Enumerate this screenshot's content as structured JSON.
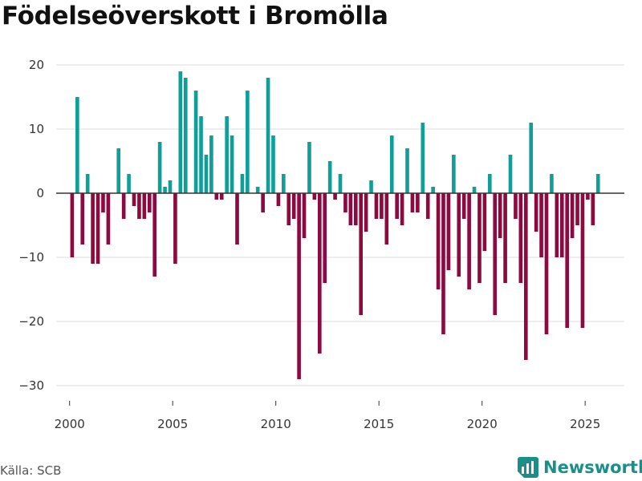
{
  "chart_data": {
    "type": "bar",
    "title": "Födelseöverskott i Bromölla",
    "xlabel": "",
    "ylabel": "",
    "ylim": [
      -32,
      22
    ],
    "xlim": [
      1999.35,
      2026.9
    ],
    "yticks": [
      -30,
      -20,
      -10,
      0,
      10,
      20
    ],
    "xticks": [
      2000,
      2005,
      2010,
      2015,
      2020,
      2025
    ],
    "positive_color": "#0f9e98",
    "negative_color": "#8c0a3f",
    "series": [
      {
        "name": "Födelseöverskott",
        "x": [
          2000.125,
          2000.375,
          2000.625,
          2000.875,
          2001.125,
          2001.375,
          2001.625,
          2001.875,
          2002.125,
          2002.375,
          2002.625,
          2002.875,
          2003.125,
          2003.375,
          2003.625,
          2003.875,
          2004.125,
          2004.375,
          2004.625,
          2004.875,
          2005.125,
          2005.375,
          2005.625,
          2005.875,
          2006.125,
          2006.375,
          2006.625,
          2006.875,
          2007.125,
          2007.375,
          2007.625,
          2007.875,
          2008.125,
          2008.375,
          2008.625,
          2008.875,
          2009.125,
          2009.375,
          2009.625,
          2009.875,
          2010.125,
          2010.375,
          2010.625,
          2010.875,
          2011.125,
          2011.375,
          2011.625,
          2011.875,
          2012.125,
          2012.375,
          2012.625,
          2012.875,
          2013.125,
          2013.375,
          2013.625,
          2013.875,
          2014.125,
          2014.375,
          2014.625,
          2014.875,
          2015.125,
          2015.375,
          2015.625,
          2015.875,
          2016.125,
          2016.375,
          2016.625,
          2016.875,
          2017.125,
          2017.375,
          2017.625,
          2017.875,
          2018.125,
          2018.375,
          2018.625,
          2018.875,
          2019.125,
          2019.375,
          2019.625,
          2019.875,
          2020.125,
          2020.375,
          2020.625,
          2020.875,
          2021.125,
          2021.375,
          2021.625,
          2021.875,
          2022.125,
          2022.375,
          2022.625,
          2022.875,
          2023.125,
          2023.375,
          2023.625,
          2023.875,
          2024.125,
          2024.375,
          2024.625,
          2024.875,
          2025.125,
          2025.375,
          2025.625
        ],
        "values": [
          -10,
          15,
          -8,
          3,
          -11,
          -11,
          -3,
          -8,
          0,
          7,
          -4,
          3,
          -2,
          -4,
          -4,
          -3,
          -13,
          8,
          1,
          2,
          -11,
          19,
          18,
          0,
          16,
          12,
          6,
          9,
          -1,
          -1,
          12,
          9,
          -8,
          3,
          16,
          0,
          1,
          -3,
          18,
          9,
          -2,
          3,
          -5,
          -4,
          -29,
          -7,
          8,
          -1,
          -25,
          -14,
          5,
          -1,
          3,
          -3,
          -5,
          -5,
          -19,
          -6,
          2,
          -4,
          -4,
          -8,
          9,
          -4,
          -5,
          7,
          -3,
          -3,
          11,
          -4,
          1,
          -15,
          -22,
          -12,
          6,
          -13,
          -4,
          -15,
          1,
          -14,
          -9,
          3,
          -19,
          -7,
          -14,
          6,
          -4,
          -14,
          -26,
          11,
          -6,
          -10,
          -22,
          3,
          -10,
          -10,
          -21,
          -7,
          -5,
          -21,
          -1,
          -5,
          3
        ]
      }
    ]
  },
  "source": "Källa: SCB",
  "brand": "Newsworthy"
}
